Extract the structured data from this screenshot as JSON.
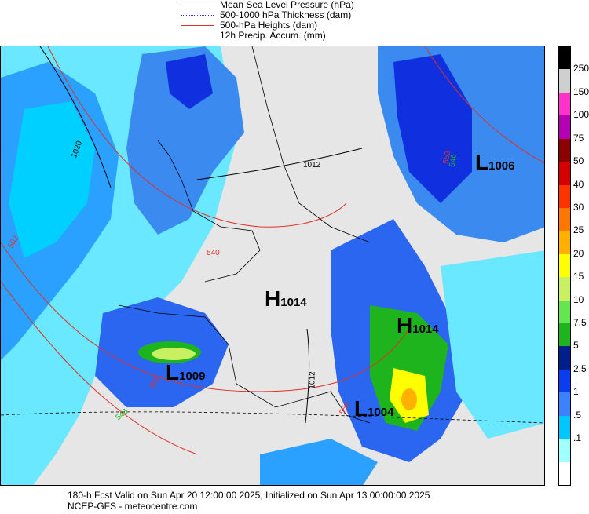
{
  "legend": [
    {
      "label": "Mean Sea Level Pressure (hPa)",
      "color": "#000000",
      "style": "solid"
    },
    {
      "label": "500-1000 hPa Thickness (dam)",
      "color": "#2a2ad0",
      "style": "dotted"
    },
    {
      "label": "500-hPa Heights (dam)",
      "color": "#e0302a",
      "style": "solid"
    },
    {
      "label": "12h Precip. Accum. (mm)",
      "color": "",
      "style": "none"
    }
  ],
  "colorbar": {
    "labels": [
      "250",
      "150",
      "100",
      "75",
      "50",
      "40",
      "30",
      "25",
      "20",
      "15",
      "10",
      "7.5",
      "5",
      "2.5",
      "1",
      ".5",
      ".1"
    ],
    "colors": [
      "#000000",
      "#cfcfcf",
      "#ff33cc",
      "#b300b3",
      "#8b0000",
      "#d40000",
      "#ff3300",
      "#ff7700",
      "#ffb000",
      "#ffff00",
      "#c8f060",
      "#64e650",
      "#1eb41e",
      "#001e8c",
      "#0a3cf0",
      "#3c82ff",
      "#00c8ff",
      "#a0ffff",
      "#ffffff"
    ]
  },
  "pressure_systems": [
    {
      "letter": "L",
      "value": "1006"
    },
    {
      "letter": "H",
      "value": "1014"
    },
    {
      "letter": "H",
      "value": "1014"
    },
    {
      "letter": "L",
      "value": "1009"
    },
    {
      "letter": "L",
      "value": "1004"
    }
  ],
  "contour_labels": [
    "1020",
    "1012",
    "1012",
    "540",
    "552",
    "552",
    "552",
    "552",
    "546",
    "546"
  ],
  "footer": {
    "line1": "180-h Fcst Valid on Sun Apr 20 12:00:00 2025, Initialized on Sun Apr 13 00:00:00 2025",
    "line2": "NCEP-GFS  - meteocentre.com"
  }
}
